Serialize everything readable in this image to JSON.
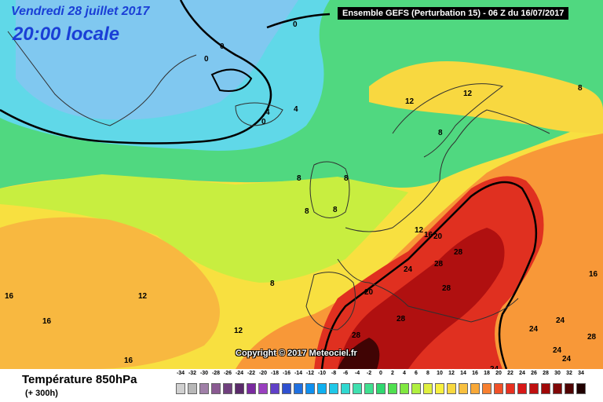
{
  "header": {
    "date": "Vendredi 28 juillet 2017",
    "time": "20:00 locale",
    "model": "Ensemble GEFS  (Perturbation 15)  -  06 Z du 16/07/2017"
  },
  "footer": {
    "title": "Température 850hPa",
    "subtitle": "(+ 300h)",
    "copyright": "Copyright © 2017 Meteociel.fr"
  },
  "scale": {
    "values": [
      "-34",
      "-32",
      "-30",
      "-28",
      "-26",
      "-24",
      "-22",
      "-20",
      "-18",
      "-16",
      "-14",
      "-12",
      "-10",
      "-8",
      "-6",
      "-4",
      "-2",
      "0",
      "2",
      "4",
      "6",
      "8",
      "10",
      "12",
      "14",
      "16",
      "18",
      "20",
      "22",
      "24",
      "26",
      "28",
      "30",
      "32",
      "34"
    ],
    "colors": [
      "#d0d0d0",
      "#b8b8b8",
      "#a080a8",
      "#8a5a92",
      "#70407e",
      "#5a2a6a",
      "#7a2aa0",
      "#9a40c0",
      "#6040c8",
      "#3050d0",
      "#2070e0",
      "#1090f0",
      "#10b0f0",
      "#20c8e8",
      "#30d8d0",
      "#40e0b0",
      "#40e090",
      "#30d870",
      "#50e050",
      "#80e840",
      "#b0f040",
      "#e0f040",
      "#f8f040",
      "#f8d840",
      "#f8c040",
      "#f8a838",
      "#f88030",
      "#f05028",
      "#e83020",
      "#d81818",
      "#c01010",
      "#a00808",
      "#800808",
      "#500404",
      "#200000"
    ]
  },
  "map_labels": [
    {
      "id": "iso-0-greenland",
      "text": "0"
    },
    {
      "id": "iso-0-a",
      "text": "0"
    },
    {
      "id": "iso-0-b",
      "text": "0"
    },
    {
      "id": "iso-0-iceland",
      "text": "0"
    },
    {
      "id": "iso-4-a",
      "text": "4"
    },
    {
      "id": "iso-4-b",
      "text": "4"
    },
    {
      "id": "iso-8-ne",
      "text": "8"
    },
    {
      "id": "iso-12-scand",
      "text": "12"
    },
    {
      "id": "iso-12-north",
      "text": "12"
    },
    {
      "id": "iso-8-baltic",
      "text": "8"
    },
    {
      "id": "iso-8-atl",
      "text": "8"
    },
    {
      "id": "iso-8-uk-a",
      "text": "8"
    },
    {
      "id": "iso-8-uk-b",
      "text": "8"
    },
    {
      "id": "iso-8-uk-c",
      "text": "8"
    },
    {
      "id": "iso-12-fr",
      "text": "12"
    },
    {
      "id": "iso-16-fr",
      "text": "16"
    },
    {
      "id": "iso-20-fr",
      "text": "20"
    },
    {
      "id": "iso-28-c",
      "text": "28"
    },
    {
      "id": "iso-28-d",
      "text": "28"
    },
    {
      "id": "iso-24-e",
      "text": "24"
    },
    {
      "id": "iso-28-f",
      "text": "28"
    },
    {
      "id": "iso-20-g",
      "text": "20"
    },
    {
      "id": "iso-28-sp",
      "text": "28"
    },
    {
      "id": "iso-28-sw",
      "text": "28"
    },
    {
      "id": "iso-8-azores",
      "text": "8"
    },
    {
      "id": "iso-12-atl",
      "text": "12"
    },
    {
      "id": "iso-12-atl-s",
      "text": "12"
    },
    {
      "id": "iso-16-w",
      "text": "16"
    },
    {
      "id": "iso-16-w2",
      "text": "16"
    },
    {
      "id": "iso-16-sw",
      "text": "16"
    },
    {
      "id": "iso-16-e",
      "text": "16"
    },
    {
      "id": "iso-24-gr",
      "text": "24"
    },
    {
      "id": "iso-24-tr",
      "text": "24"
    },
    {
      "id": "iso-28-tr",
      "text": "28"
    },
    {
      "id": "iso-24-med",
      "text": "24"
    },
    {
      "id": "iso-24-med2",
      "text": "24"
    },
    {
      "id": "iso-24-s",
      "text": "24"
    }
  ]
}
